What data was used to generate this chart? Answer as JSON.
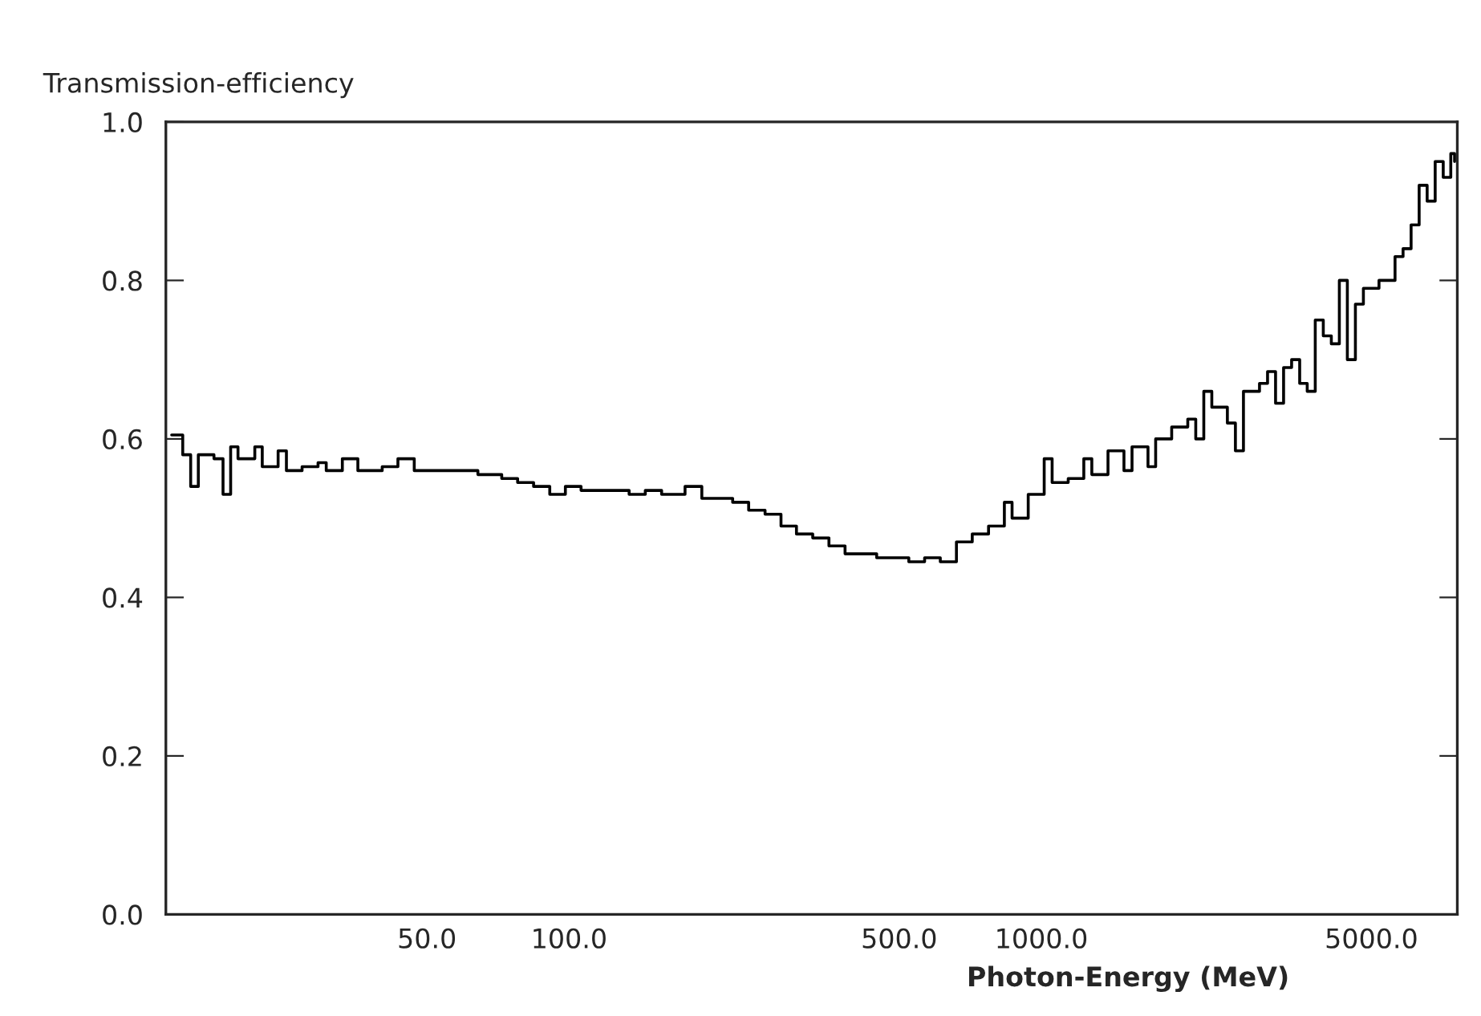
{
  "chart_data": {
    "type": "step",
    "xlabel": "Photon-Energy (MeV)",
    "ylabel": "Transmission-efficiency",
    "log": "x",
    "line_style": "solid",
    "marker": "none",
    "grid": false,
    "xlim": [
      14,
      7600
    ],
    "ylim": [
      0,
      1.0
    ],
    "xticks": [
      {
        "value": 50,
        "label": "50.0"
      },
      {
        "value": 100,
        "label": "100.0"
      },
      {
        "value": 500,
        "label": "500.0"
      },
      {
        "value": 1000,
        "label": "1000.0"
      },
      {
        "value": 5000,
        "label": "5000.0"
      }
    ],
    "yticks": [
      {
        "value": 0,
        "label": "0.0"
      },
      {
        "value": 0.2,
        "label": "0.2"
      },
      {
        "value": 0.4,
        "label": "0.4"
      },
      {
        "value": 0.6,
        "label": "0.6"
      },
      {
        "value": 0.8,
        "label": "0.8"
      },
      {
        "value": 1.0,
        "label": "1.0"
      }
    ],
    "series": [
      {
        "color": "#000000",
        "x": [
          14.4,
          15.2,
          15.8,
          16.4,
          17.7,
          18.5,
          19.2,
          19.9,
          21.6,
          22.4,
          24.2,
          25.2,
          27.2,
          29.4,
          30.6,
          33.1,
          35.7,
          40.2,
          43.4,
          47.0,
          50.7,
          57.0,
          64.1,
          72.0,
          77.8,
          84.1,
          91.0,
          98.2,
          106,
          119,
          134,
          145,
          157,
          176,
          191,
          206,
          222,
          240,
          260,
          281,
          303,
          328,
          355,
          384,
          414,
          448,
          484,
          524,
          566,
          611,
          661,
          714,
          773,
          835,
          867,
          938,
          1014,
          1054,
          1140,
          1230,
          1279,
          1384,
          1496,
          1556,
          1682,
          1746,
          1888,
          2042,
          2123,
          2208,
          2296,
          2477,
          2576,
          2679,
          2897,
          3013,
          3133,
          3258,
          3388,
          3524,
          3656,
          3802,
          3954,
          4112,
          4276,
          4446,
          4624,
          4808,
          5188,
          5610,
          5834,
          6067,
          6310,
          6561,
          6823,
          7096,
          7362,
          7500
        ],
        "values": [
          0.605,
          0.58,
          0.54,
          0.58,
          0.575,
          0.53,
          0.59,
          0.575,
          0.59,
          0.565,
          0.585,
          0.56,
          0.565,
          0.57,
          0.56,
          0.575,
          0.56,
          0.565,
          0.575,
          0.56,
          0.56,
          0.56,
          0.555,
          0.55,
          0.545,
          0.54,
          0.53,
          0.54,
          0.535,
          0.535,
          0.53,
          0.535,
          0.53,
          0.54,
          0.525,
          0.525,
          0.52,
          0.51,
          0.505,
          0.49,
          0.48,
          0.475,
          0.465,
          0.455,
          0.455,
          0.45,
          0.45,
          0.445,
          0.45,
          0.445,
          0.47,
          0.48,
          0.49,
          0.52,
          0.5,
          0.53,
          0.575,
          0.545,
          0.55,
          0.575,
          0.555,
          0.585,
          0.56,
          0.59,
          0.565,
          0.6,
          0.615,
          0.625,
          0.6,
          0.66,
          0.64,
          0.62,
          0.585,
          0.66,
          0.67,
          0.685,
          0.645,
          0.69,
          0.7,
          0.67,
          0.66,
          0.75,
          0.73,
          0.72,
          0.8,
          0.7,
          0.77,
          0.79,
          0.8,
          0.83,
          0.84,
          0.87,
          0.92,
          0.9,
          0.95,
          0.93,
          0.96,
          0.95
        ]
      }
    ]
  }
}
